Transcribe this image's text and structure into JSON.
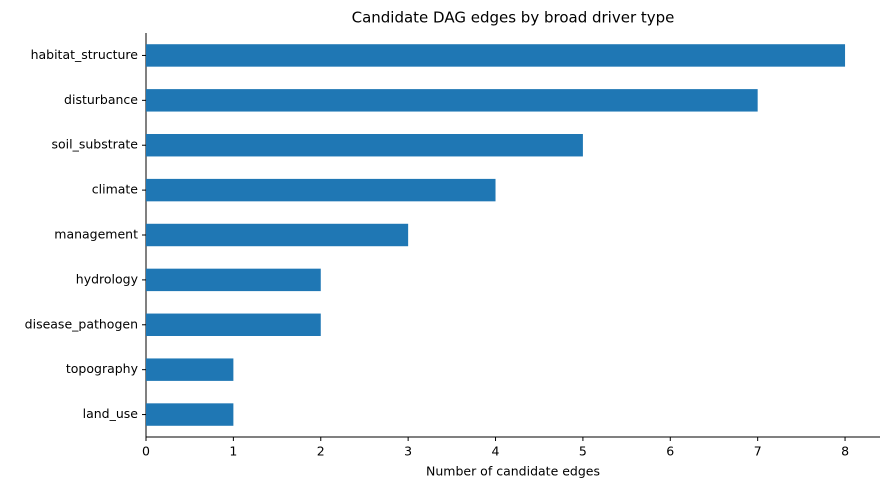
{
  "chart_data": {
    "type": "barh",
    "title": "Candidate DAG edges by broad driver type",
    "x_label": "Number of candidate edges",
    "categories": [
      "habitat_structure",
      "disturbance",
      "soil_substrate",
      "climate",
      "management",
      "hydrology",
      "disease_pathogen",
      "topography",
      "land_use"
    ],
    "values": [
      8,
      7,
      5,
      4,
      3,
      2,
      2,
      1,
      1
    ],
    "color": "#1f77b4",
    "xlim": [
      0,
      8.4
    ],
    "xticks": [
      0,
      1,
      2,
      3,
      4,
      5,
      6,
      7,
      8
    ],
    "grid": false
  }
}
